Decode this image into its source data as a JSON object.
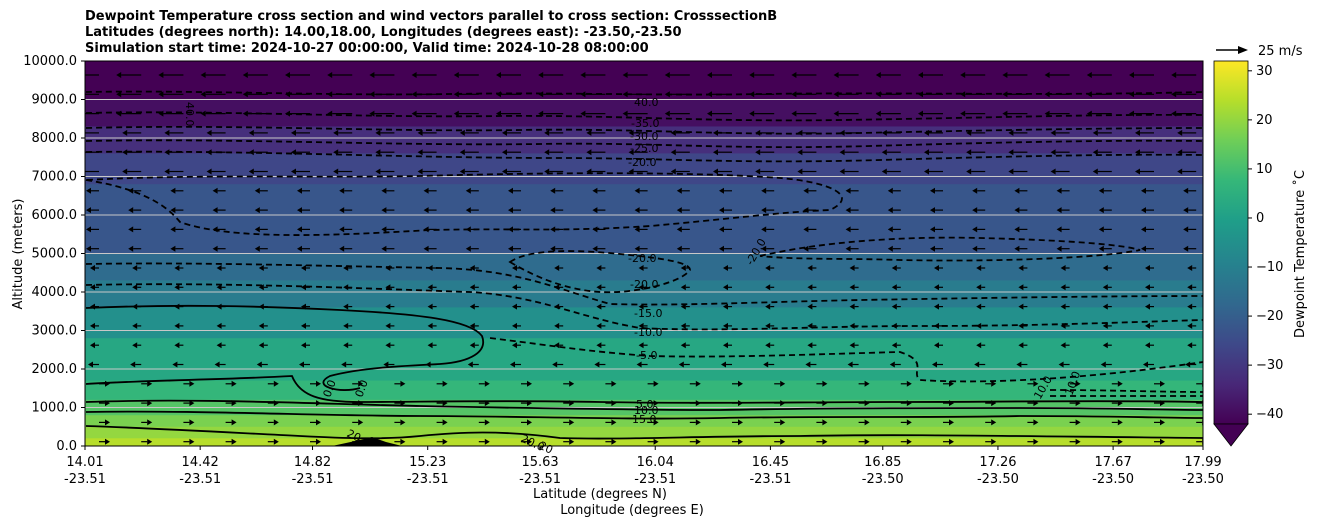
{
  "title": {
    "line1": "Dewpoint Temperature cross section and wind vectors parallel to cross section: CrosssectionB",
    "line2": "Latitudes (degrees north): 14.00,18.00, Longitudes (degrees east): -23.50,-23.50",
    "line3": "Simulation start time: 2024-10-27 00:00:00, Valid time: 2024-10-28 08:00:00"
  },
  "chart_data": {
    "type": "contourf",
    "yaxis": {
      "label": "Altitude (meters)",
      "range": [
        0,
        10000
      ],
      "ticks": [
        0,
        1000,
        2000,
        3000,
        4000,
        5000,
        6000,
        7000,
        8000,
        9000,
        10000
      ],
      "tick_labels": [
        "0.0",
        "1000.0",
        "2000.0",
        "3000.0",
        "4000.0",
        "5000.0",
        "6000.0",
        "7000.0",
        "8000.0",
        "9000.0",
        "10000.0"
      ],
      "grid": true
    },
    "xaxis": {
      "label_lat": "Latitude (degrees N)",
      "label_lon": "Longitude (degrees E)",
      "range": [
        14.01,
        17.99
      ],
      "ticks_lat": [
        "14.01",
        "14.42",
        "14.82",
        "15.23",
        "15.63",
        "16.04",
        "16.45",
        "16.85",
        "17.26",
        "17.67",
        "17.99"
      ],
      "ticks_lon": [
        "-23.51",
        "-23.51",
        "-23.51",
        "-23.51",
        "-23.51",
        "-23.51",
        "-23.51",
        "-23.50",
        "-23.50",
        "-23.50",
        "-23.50"
      ]
    },
    "colorbar": {
      "label": "Dewpoint Temperature ˚C",
      "range": [
        -42,
        32
      ],
      "ticks": [
        30,
        20,
        10,
        0,
        -10,
        -20,
        -30,
        -40
      ],
      "tick_labels": [
        "30",
        "20",
        "10",
        "0",
        "−10",
        "−20",
        "−30",
        "−40"
      ],
      "extend": "min",
      "colormap": [
        "#440154",
        "#482878",
        "#3e4989",
        "#31688e",
        "#26828e",
        "#1f9e89",
        "#35b779",
        "#6ece58",
        "#b5de2b",
        "#fde725"
      ]
    },
    "wind_key": {
      "label": "25 m/s",
      "speed": 25
    },
    "dewpoint_bands": [
      {
        "top_m": 10000,
        "value_c": -42
      },
      {
        "top_m": 9000,
        "value_c": -39
      },
      {
        "top_m": 8300,
        "value_c": -32
      },
      {
        "top_m": 7600,
        "value_c": -26
      },
      {
        "top_m": 6800,
        "value_c": -22
      },
      {
        "top_m": 5000,
        "value_c": -16
      },
      {
        "top_m": 4300,
        "value_c": -11
      },
      {
        "top_m": 3600,
        "value_c": -5
      },
      {
        "top_m": 2800,
        "value_c": 2
      },
      {
        "top_m": 1700,
        "value_c": 7
      },
      {
        "top_m": 1200,
        "value_c": 12
      },
      {
        "top_m": 800,
        "value_c": 17
      },
      {
        "top_m": 500,
        "value_c": 20
      },
      {
        "top_m": 200,
        "value_c": 24
      }
    ],
    "contour_levels": [
      "40.0",
      "-35.0",
      "-30.0",
      "-25.0",
      "-20.0",
      "-20.0",
      "-20.0",
      "-20.0",
      "-15.0",
      "-10.0",
      "-5.0",
      "5.0",
      "10.0",
      "15.0",
      "20",
      "20.0",
      "0.0",
      "0.0",
      "20",
      "10.0",
      "40.0",
      "10.0"
    ]
  }
}
